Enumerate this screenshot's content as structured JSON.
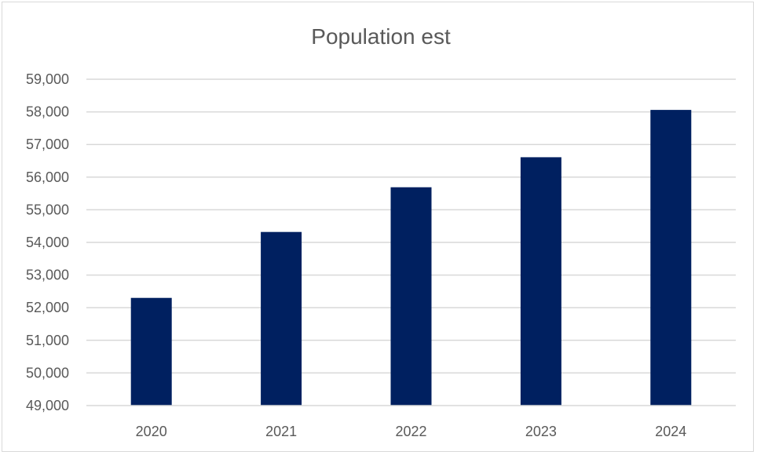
{
  "chart_data": {
    "type": "bar",
    "title": "Population est",
    "xlabel": "",
    "ylabel": "",
    "categories": [
      "2020",
      "2021",
      "2022",
      "2023",
      "2024"
    ],
    "values": [
      52300,
      54320,
      55690,
      56610,
      58060
    ],
    "ylim": [
      49000,
      59000
    ],
    "yticks": [
      49000,
      50000,
      51000,
      52000,
      53000,
      54000,
      55000,
      56000,
      57000,
      58000,
      59000
    ],
    "ytick_labels": [
      "49,000",
      "50,000",
      "51,000",
      "52,000",
      "53,000",
      "54,000",
      "55,000",
      "56,000",
      "57,000",
      "58,000",
      "59,000"
    ],
    "grid": true,
    "legend": "none",
    "bar_color": "#002060",
    "grid_color": "#d9d9d9"
  }
}
